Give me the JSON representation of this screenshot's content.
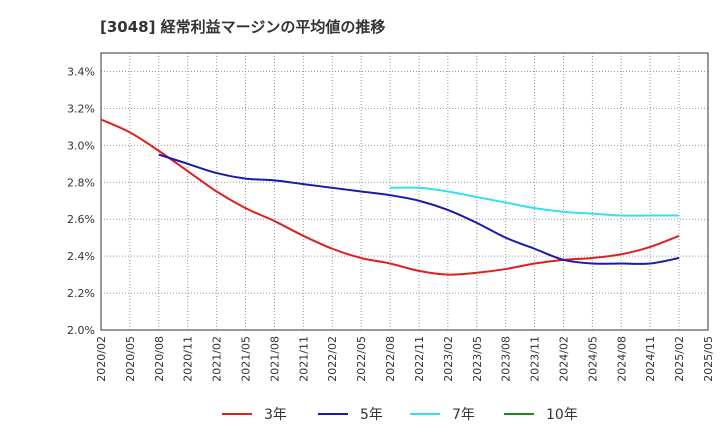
{
  "chart_data": {
    "type": "line",
    "title": "[3048]  経常利益マージンの平均値の推移",
    "xlabel": "",
    "ylabel": "",
    "ylim": [
      2.0,
      3.5
    ],
    "yticks": [
      "2.0%",
      "2.2%",
      "2.4%",
      "2.6%",
      "2.8%",
      "3.0%",
      "3.2%",
      "3.4%"
    ],
    "ytick_values": [
      2.0,
      2.2,
      2.4,
      2.6,
      2.8,
      3.0,
      3.2,
      3.4
    ],
    "x_categories": [
      "2020/02",
      "2020/05",
      "2020/08",
      "2020/11",
      "2021/02",
      "2021/05",
      "2021/08",
      "2021/11",
      "2022/02",
      "2022/05",
      "2022/08",
      "2022/11",
      "2023/02",
      "2023/05",
      "2023/08",
      "2023/11",
      "2024/02",
      "2024/05",
      "2024/08",
      "2024/11",
      "2025/02",
      "2025/05"
    ],
    "grid": true,
    "legend_position": "bottom",
    "series": [
      {
        "name": "3年",
        "color": "#e02020",
        "values": [
          3.14,
          3.07,
          2.97,
          2.86,
          2.75,
          2.66,
          2.59,
          2.51,
          2.44,
          2.39,
          2.36,
          2.32,
          2.3,
          2.31,
          2.33,
          2.36,
          2.38,
          2.39,
          2.41,
          2.45,
          2.51,
          null
        ]
      },
      {
        "name": "5年",
        "color": "#1a1aaa",
        "values": [
          null,
          null,
          2.95,
          2.9,
          2.85,
          2.82,
          2.81,
          2.79,
          2.77,
          2.75,
          2.73,
          2.7,
          2.65,
          2.58,
          2.5,
          2.44,
          2.38,
          2.36,
          2.36,
          2.36,
          2.39,
          null
        ]
      },
      {
        "name": "7年",
        "color": "#33e0f0",
        "values": [
          null,
          null,
          null,
          null,
          null,
          null,
          null,
          null,
          null,
          null,
          2.77,
          2.77,
          2.75,
          2.72,
          2.69,
          2.66,
          2.64,
          2.63,
          2.62,
          2.62,
          2.62,
          null
        ]
      },
      {
        "name": "10年",
        "color": "#1a8a1a",
        "values": [
          null,
          null,
          null,
          null,
          null,
          null,
          null,
          null,
          null,
          null,
          null,
          null,
          null,
          null,
          null,
          null,
          null,
          null,
          null,
          null,
          null,
          null
        ]
      }
    ]
  }
}
